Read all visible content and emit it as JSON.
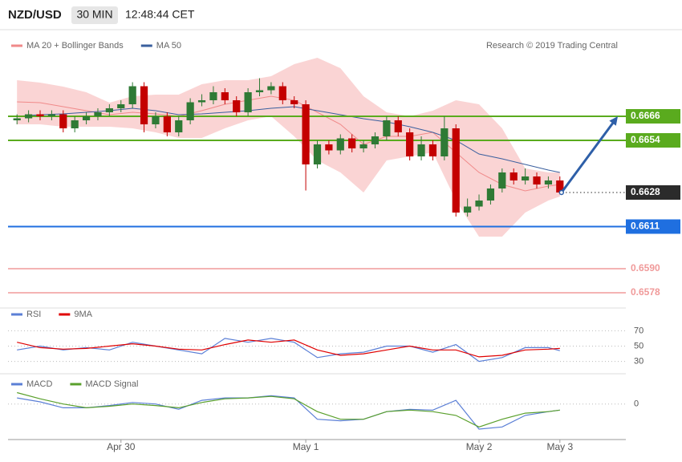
{
  "header": {
    "symbol": "NZD/USD",
    "interval": "30 MIN",
    "time": "12:48:44 CET"
  },
  "chart_data": [
    {
      "type": "candlestick",
      "source": "Research © 2019 Trading Central",
      "categories": [
        null,
        null,
        null,
        null,
        null,
        null,
        null,
        null,
        null,
        "Apr 30",
        null,
        null,
        null,
        null,
        null,
        null,
        null,
        null,
        null,
        null,
        null,
        null,
        null,
        null,
        null,
        "May 1",
        null,
        null,
        null,
        null,
        null,
        null,
        null,
        null,
        null,
        null,
        null,
        null,
        null,
        null,
        "May 2",
        null,
        null,
        null,
        null,
        null,
        null,
        "May 3"
      ],
      "open": [
        0.6664,
        0.6665,
        0.6667,
        0.6666,
        0.6667,
        0.666,
        0.6664,
        0.6666,
        0.6668,
        0.667,
        0.6672,
        0.6681,
        0.6662,
        0.6666,
        0.6658,
        0.6664,
        0.6673,
        0.6674,
        0.6678,
        0.6674,
        0.6668,
        0.6678,
        0.6679,
        0.6681,
        0.6674,
        0.6672,
        0.6642,
        0.6652,
        0.6649,
        0.6655,
        0.665,
        0.6652,
        0.6656,
        0.6664,
        0.6658,
        0.6646,
        0.6652,
        0.6646,
        0.666,
        0.6618,
        0.6621,
        0.6624,
        0.663,
        0.6638,
        0.6634,
        0.6636,
        0.6632,
        0.6634
      ],
      "high": [
        0.6667,
        0.6669,
        0.6669,
        0.6669,
        0.6669,
        0.6666,
        0.6668,
        0.667,
        0.6672,
        0.6674,
        0.6683,
        0.6683,
        0.6668,
        0.6668,
        0.6666,
        0.6675,
        0.6677,
        0.6681,
        0.668,
        0.6676,
        0.668,
        0.6685,
        0.6683,
        0.6683,
        0.6676,
        0.6674,
        0.6654,
        0.6654,
        0.6657,
        0.6657,
        0.6654,
        0.6658,
        0.6666,
        0.6666,
        0.666,
        0.6656,
        0.6654,
        0.6666,
        0.6662,
        0.6625,
        0.6627,
        0.6632,
        0.664,
        0.664,
        0.664,
        0.6638,
        0.6636,
        0.6636
      ],
      "low": [
        0.6662,
        0.6663,
        0.6664,
        0.6664,
        0.6658,
        0.6658,
        0.6662,
        0.6664,
        0.6666,
        0.6668,
        0.667,
        0.6658,
        0.666,
        0.6656,
        0.6656,
        0.6662,
        0.6671,
        0.6672,
        0.6672,
        0.6666,
        0.6666,
        0.6676,
        0.6677,
        0.6672,
        0.667,
        0.6629,
        0.664,
        0.6647,
        0.6647,
        0.6648,
        0.6648,
        0.665,
        0.6654,
        0.6656,
        0.6644,
        0.6644,
        0.6644,
        0.6644,
        0.6616,
        0.6616,
        0.6619,
        0.6622,
        0.6628,
        0.6632,
        0.6632,
        0.663,
        0.663,
        0.6627
      ],
      "close": [
        0.6665,
        0.6667,
        0.6666,
        0.6667,
        0.666,
        0.6664,
        0.6666,
        0.6668,
        0.667,
        0.6672,
        0.6681,
        0.6662,
        0.6666,
        0.6658,
        0.6664,
        0.6673,
        0.6674,
        0.6678,
        0.6674,
        0.6668,
        0.6678,
        0.6679,
        0.6681,
        0.6674,
        0.6672,
        0.6642,
        0.6652,
        0.6649,
        0.6655,
        0.665,
        0.6652,
        0.6656,
        0.6664,
        0.6658,
        0.6646,
        0.6652,
        0.6646,
        0.666,
        0.6618,
        0.6621,
        0.6624,
        0.663,
        0.6638,
        0.6634,
        0.6636,
        0.6632,
        0.6634,
        0.6628
      ],
      "up_color": "#2f7a35",
      "down_color": "#c40000",
      "ylim": [
        0.6572,
        0.6708
      ],
      "x": [
        0,
        2,
        4,
        6,
        8,
        10,
        12,
        14,
        16,
        18,
        20,
        22,
        24,
        26,
        28,
        30,
        32,
        34,
        36,
        38,
        40,
        42,
        44,
        46,
        47
      ],
      "series": [
        {
          "name": "MA 20 + Bollinger Bands",
          "color": "#f08a8a",
          "band_color": "#f9cccc",
          "values": [
            0.66732,
            0.66728,
            0.66708,
            0.66688,
            0.66668,
            0.6668,
            0.66672,
            0.6666,
            0.66688,
            0.6672,
            0.6674,
            0.6676,
            0.6674,
            0.6668,
            0.6662,
            0.6652,
            0.6656,
            0.6656,
            0.6658,
            0.6648,
            0.6638,
            0.6632,
            0.66288,
            0.66312,
            0.6632
          ],
          "upper": [
            0.6684,
            0.66828,
            0.66808,
            0.6678,
            0.66728,
            0.6676,
            0.66768,
            0.66768,
            0.6682,
            0.6684,
            0.6684,
            0.6686,
            0.6692,
            0.66952,
            0.669,
            0.6676,
            0.6668,
            0.6666,
            0.66688,
            0.6674,
            0.6672,
            0.666,
            0.664,
            0.6638,
            0.6638
          ],
          "lower": [
            0.6662,
            0.6662,
            0.66608,
            0.66608,
            0.66608,
            0.666,
            0.6658,
            0.66552,
            0.66552,
            0.666,
            0.6664,
            0.6666,
            0.6656,
            0.6644,
            0.6638,
            0.6628,
            0.6644,
            0.6646,
            0.6648,
            0.6624,
            0.6606,
            0.6606,
            0.6618,
            0.6624,
            0.6626
          ]
        },
        {
          "name": "MA 50",
          "color": "#3a5f9e",
          "values": [
            0.6666,
            0.66668,
            0.66672,
            0.6668,
            0.66688,
            0.667,
            0.66688,
            0.66668,
            0.66672,
            0.6668,
            0.66688,
            0.667,
            0.66708,
            0.66688,
            0.66668,
            0.66648,
            0.66632,
            0.66608,
            0.6658,
            0.6654,
            0.66472,
            0.66448,
            0.6642,
            0.66392,
            0.6638
          ]
        }
      ],
      "levels": [
        {
          "value": 0.6666,
          "color": "#5aab1e",
          "style": "solid",
          "boxed": true
        },
        {
          "value": 0.6654,
          "color": "#5aab1e",
          "style": "solid",
          "boxed": true
        },
        {
          "value": 0.6628,
          "color": "#2b2b2b",
          "style": "dotted",
          "boxed": true
        },
        {
          "value": 0.6611,
          "color": "#1f6fe0",
          "style": "solid",
          "boxed": true
        },
        {
          "value": 0.659,
          "label": "0.6590",
          "color": "#f09a9a",
          "style": "solid",
          "boxed": false
        },
        {
          "value": 0.6578,
          "color": "#f09a9a",
          "style": "solid",
          "boxed": false
        }
      ],
      "arrow_color": "#2e5fa8"
    },
    {
      "type": "line",
      "ylim": [
        16,
        84
      ],
      "yticks": [
        30,
        50,
        70
      ],
      "grid": true,
      "x": [
        0,
        2,
        4,
        6,
        8,
        10,
        12,
        14,
        16,
        18,
        20,
        22,
        24,
        26,
        28,
        30,
        32,
        34,
        36,
        38,
        40,
        42,
        44,
        46,
        47
      ],
      "series": [
        {
          "name": "RSI",
          "color": "#5b7fd6",
          "values": [
            45,
            50,
            45,
            48,
            45,
            55,
            50,
            45,
            40,
            60,
            55,
            60,
            55,
            35,
            40,
            42,
            50,
            50,
            42,
            52,
            30,
            35,
            48,
            48,
            44
          ]
        },
        {
          "name": "9MA",
          "color": "#e00000",
          "values": [
            55,
            48,
            46,
            47,
            50,
            53,
            50,
            46,
            45,
            52,
            58,
            55,
            58,
            45,
            38,
            40,
            45,
            50,
            45,
            45,
            36,
            38,
            45,
            46,
            47
          ]
        }
      ]
    },
    {
      "type": "line",
      "ylim": [
        -0.002,
        0.0015
      ],
      "yticks": [
        0
      ],
      "grid": false,
      "x": [
        0,
        2,
        4,
        6,
        8,
        10,
        12,
        14,
        16,
        18,
        20,
        22,
        24,
        26,
        28,
        30,
        32,
        34,
        36,
        38,
        40,
        42,
        44,
        46,
        47
      ],
      "series": [
        {
          "name": "MACD",
          "color": "#5b7fd6",
          "values": [
            0.00036,
            0.00013,
            -0.00022,
            -0.00022,
            -9e-05,
            9e-05,
            0,
            -0.00031,
            0.00022,
            0.00036,
            0.00036,
            0.00049,
            0.00036,
            -0.0009,
            -0.00099,
            -0.0009,
            -0.00045,
            -0.00031,
            -0.00036,
            0.00022,
            -0.00148,
            -0.00135,
            -0.00067,
            -0.00045,
            -0.00036
          ]
        },
        {
          "name": "MACD Signal",
          "color": "#5aa02c",
          "values": [
            0.00067,
            0.00031,
            0,
            -0.00022,
            -0.00013,
            0,
            -9e-05,
            -0.00022,
            9e-05,
            0.00031,
            0.00036,
            0.00045,
            0.00031,
            -0.00045,
            -0.0009,
            -0.0009,
            -0.00045,
            -0.00036,
            -0.00045,
            -0.00067,
            -0.00135,
            -0.0009,
            -0.00054,
            -0.00045,
            -0.00036
          ]
        }
      ]
    }
  ]
}
